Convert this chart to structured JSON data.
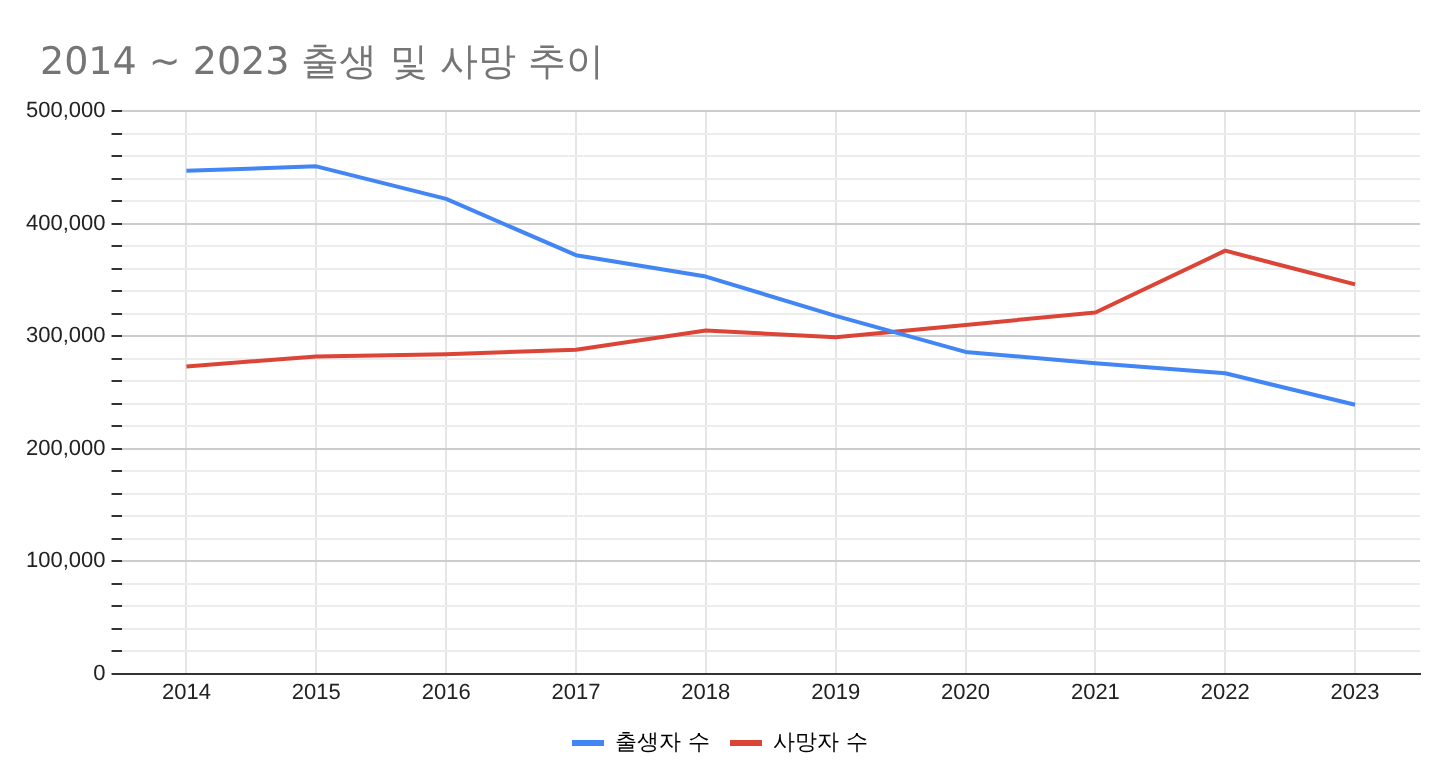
{
  "chart_data": {
    "type": "line",
    "title": "2014 ~ 2023 출생 및 사망 추이",
    "categories": [
      "2014",
      "2015",
      "2016",
      "2017",
      "2018",
      "2019",
      "2020",
      "2021",
      "2022",
      "2023"
    ],
    "series": [
      {
        "name": "출생자 수",
        "color": "#4285f4",
        "values": [
          447000,
          451000,
          422000,
          372000,
          353000,
          318000,
          286000,
          276000,
          267000,
          239000
        ]
      },
      {
        "name": "사망자 수",
        "color": "#db4437",
        "values": [
          273000,
          282000,
          284000,
          288000,
          305000,
          299000,
          310000,
          321000,
          376000,
          346000
        ]
      }
    ],
    "ylim": [
      0,
      500000
    ],
    "yticks": [
      0,
      {
        "value": 20000,
        "label": null
      },
      {
        "value": 40000,
        "label": null
      },
      {
        "value": 60000,
        "label": null
      },
      {
        "value": 80000,
        "label": null
      },
      "100,000",
      {
        "value": 120000,
        "label": null
      },
      {
        "value": 140000,
        "label": null
      },
      {
        "value": 160000,
        "label": null
      },
      {
        "value": 180000,
        "label": null
      },
      {
        "value": 200000,
        "label": "200,000"
      },
      {
        "value": 220000,
        "label": null
      },
      {
        "value": 240000,
        "label": null
      },
      {
        "value": 260000,
        "label": null
      },
      {
        "value": 280000,
        "label": null
      },
      {
        "value": 300000,
        "label": "300,000"
      },
      {
        "value": 320000,
        "label": null
      },
      {
        "value": 340000,
        "label": null
      },
      {
        "value": 360000,
        "label": null
      },
      {
        "value": 380000,
        "label": null
      },
      {
        "value": 400000,
        "label": "400,000"
      },
      {
        "value": 420000,
        "label": null
      },
      {
        "value": 440000,
        "label": null
      },
      {
        "value": 460000,
        "label": null
      },
      {
        "value": 480000,
        "label": null
      },
      {
        "value": 500000,
        "label": "500,000"
      }
    ],
    "grid": true,
    "legend": "bottom",
    "marker": "none",
    "line_style": "solid"
  }
}
